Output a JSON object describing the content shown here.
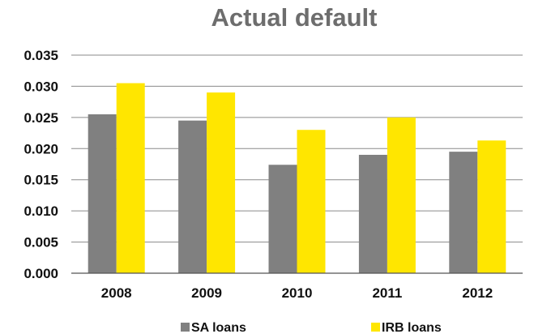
{
  "chart_data": {
    "type": "bar",
    "title": "Actual default",
    "xlabel": "",
    "ylabel": "",
    "categories": [
      "2008",
      "2009",
      "2010",
      "2011",
      "2012"
    ],
    "series": [
      {
        "name": "SA loans",
        "color": "#808080",
        "values": [
          0.0255,
          0.0245,
          0.0174,
          0.019,
          0.0195
        ]
      },
      {
        "name": "IRB loans",
        "color": "#ffe600",
        "values": [
          0.0305,
          0.029,
          0.023,
          0.025,
          0.0213
        ]
      }
    ],
    "ylim": [
      0,
      0.035
    ],
    "yticks": [
      "0.000",
      "0.005",
      "0.010",
      "0.015",
      "0.020",
      "0.025",
      "0.030",
      "0.035"
    ],
    "grid": true,
    "legend_position": "bottom"
  }
}
